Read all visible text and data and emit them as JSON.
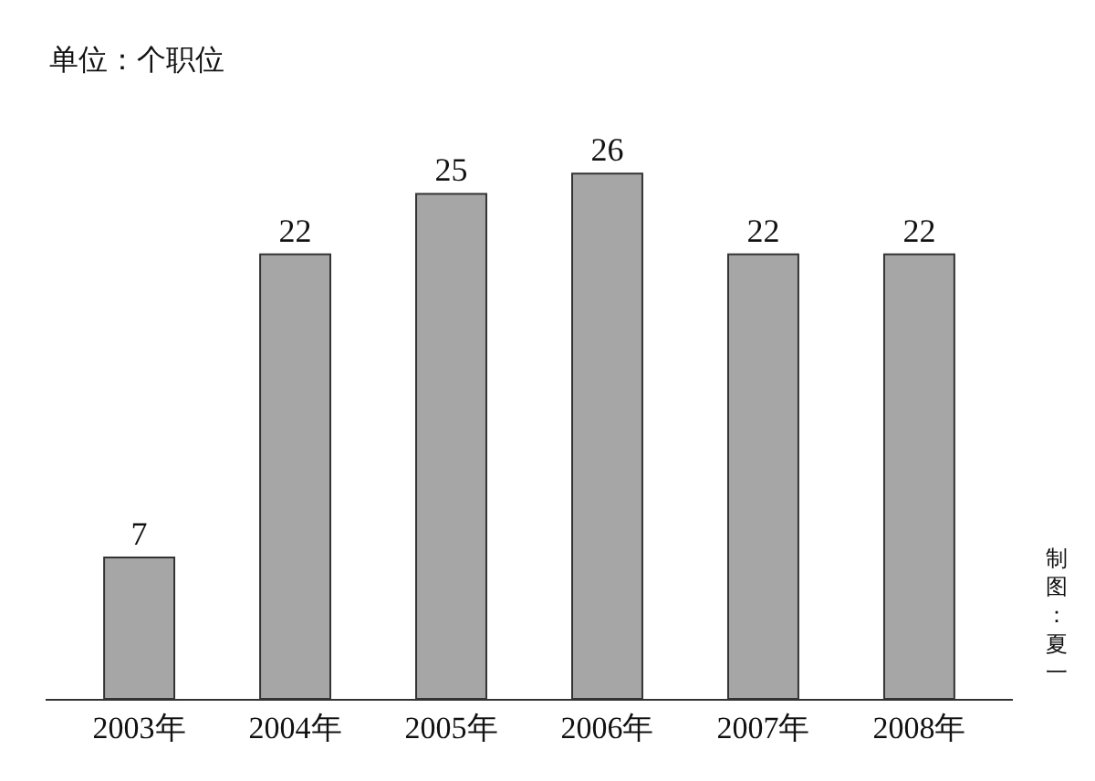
{
  "chart_data": {
    "type": "bar",
    "categories": [
      "2003年",
      "2004年",
      "2005年",
      "2006年",
      "2007年",
      "2008年"
    ],
    "values": [
      7,
      22,
      25,
      26,
      22,
      22
    ],
    "color": "#a6a6a6",
    "data_labels": true,
    "legend": false,
    "annotations": [
      "单位：个职位",
      "制图：夏一"
    ]
  }
}
